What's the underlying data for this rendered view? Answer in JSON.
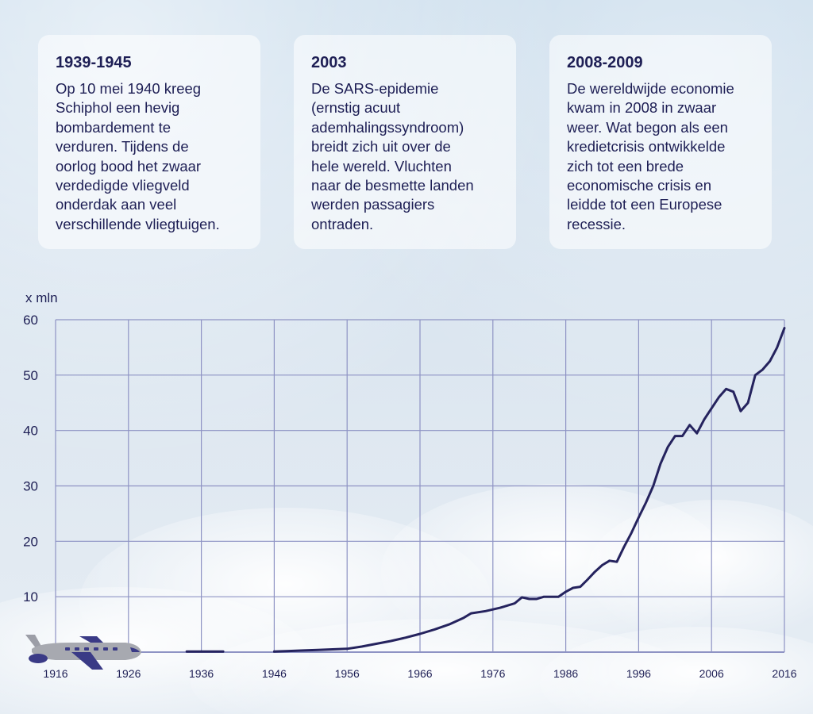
{
  "cards": [
    {
      "title": "1939-1945",
      "body": "Op 10 mei 1940 kreeg\nSchiphol een hevig\nbombardement te\nverduren. Tijdens de\noorlog bood het zwaar\nverdedigde vliegveld\nonderdak aan veel\nverschillende vliegtuigen."
    },
    {
      "title": "2003",
      "body": "De SARS-epidemie\n(ernstig acuut\nademhalingssyndroom)\nbreidt zich uit over de\nhele wereld. Vluchten\nnaar de besmette landen\nwerden passagiers\nontraden."
    },
    {
      "title": "2008-2009",
      "body": "De wereldwijde economie\nkwam in 2008 in zwaar\nweer. Wat begon als een\nkredietcrisis ontwikkelde\nzich tot een brede\neconomische crisis en\nleidde tot een Europese\nrecessie."
    }
  ],
  "colors": {
    "line": "#25235e",
    "grid": "#8e93c4",
    "text": "#1e1f55",
    "plane_body": "#a7a9b0",
    "plane_accent": "#3a3a86"
  },
  "icons": {
    "plane": "airplane-icon"
  },
  "chart_data": {
    "type": "line",
    "title": "",
    "ylabel": "x mln",
    "xlabel": "",
    "xlim": [
      1916,
      2016
    ],
    "ylim": [
      0,
      60
    ],
    "x_ticks": [
      1916,
      1926,
      1936,
      1946,
      1956,
      1966,
      1976,
      1986,
      1996,
      2006,
      2016
    ],
    "y_ticks": [
      10,
      20,
      30,
      40,
      50,
      60
    ],
    "grid": true,
    "segments": [
      {
        "x": [
          1934,
          1939
        ],
        "y": [
          0.1,
          0.1
        ]
      },
      {
        "x": [
          1946,
          1948,
          1950,
          1952,
          1954,
          1956,
          1958,
          1960,
          1962,
          1964,
          1966,
          1968,
          1970,
          1972,
          1973,
          1975,
          1977,
          1979,
          1980,
          1981,
          1982,
          1983,
          1984,
          1985,
          1986,
          1987,
          1988,
          1989,
          1990,
          1991,
          1992,
          1993,
          1994,
          1995,
          1996,
          1997,
          1998,
          1999,
          2000,
          2001,
          2002,
          2003,
          2004,
          2005,
          2006,
          2007,
          2008,
          2009,
          2010,
          2011,
          2012,
          2013,
          2014,
          2015,
          2016
        ],
        "y": [
          0.1,
          0.2,
          0.3,
          0.4,
          0.5,
          0.6,
          1.0,
          1.5,
          2.0,
          2.6,
          3.3,
          4.1,
          5.0,
          6.2,
          7.0,
          7.4,
          8.0,
          8.8,
          9.9,
          9.6,
          9.6,
          10.0,
          10.0,
          10.0,
          10.9,
          11.6,
          11.8,
          13.1,
          14.5,
          15.7,
          16.5,
          16.3,
          19.0,
          21.5,
          24.3,
          27.0,
          30.0,
          34.0,
          37.0,
          39.0,
          39.0,
          41.0,
          39.5,
          42.0,
          44.0,
          46.0,
          47.5,
          47.0,
          43.5,
          45.0,
          50.0,
          51.0,
          52.5,
          55.0,
          58.5
        ]
      }
    ]
  }
}
